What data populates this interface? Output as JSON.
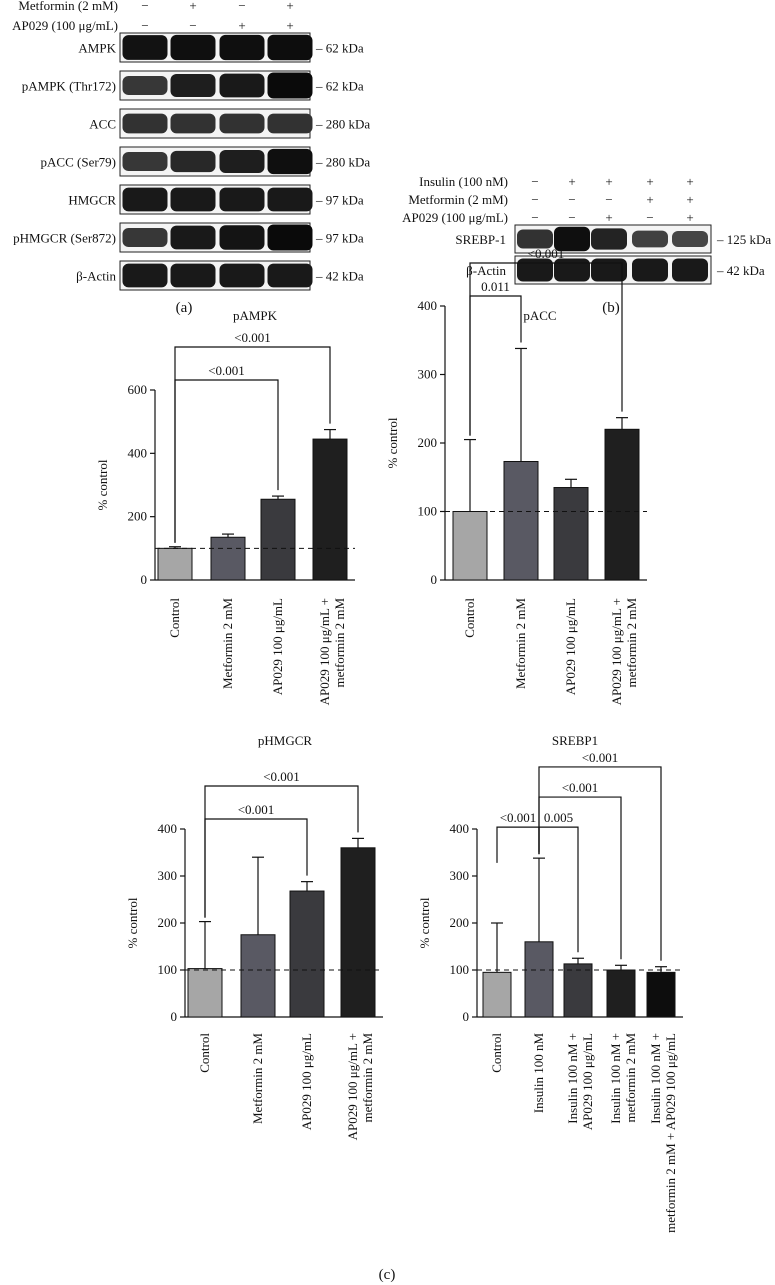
{
  "panel_a": {
    "treatments": [
      {
        "label": "Metformin (2 mM)",
        "signs": [
          "−",
          "+",
          "−",
          "+"
        ]
      },
      {
        "label": "AP029 (100 μg/mL)",
        "signs": [
          "−",
          "−",
          "+",
          "+"
        ]
      }
    ],
    "blots": [
      {
        "label": "AMPK",
        "size": "– 62 kDa",
        "intensity": [
          0.92,
          0.95,
          0.95,
          0.97
        ]
      },
      {
        "label": "pAMPK (Thr172)",
        "size": "– 62 kDa",
        "intensity": [
          0.55,
          0.8,
          0.85,
          1.0
        ]
      },
      {
        "label": "ACC",
        "size": "– 280 kDa",
        "intensity": [
          0.6,
          0.6,
          0.6,
          0.6
        ]
      },
      {
        "label": "pACC (Ser79)",
        "size": "– 280 kDa",
        "intensity": [
          0.55,
          0.7,
          0.8,
          0.95
        ]
      },
      {
        "label": "HMGCR",
        "size": "– 97 kDa",
        "intensity": [
          0.85,
          0.85,
          0.85,
          0.85
        ]
      },
      {
        "label": "pHMGCR (Ser872)",
        "size": "– 97 kDa",
        "intensity": [
          0.55,
          0.85,
          0.9,
          1.0
        ]
      },
      {
        "label": "β-Actin",
        "size": "– 42 kDa",
        "intensity": [
          0.85,
          0.85,
          0.85,
          0.85
        ]
      }
    ],
    "caption": "(a)"
  },
  "panel_b": {
    "treatments": [
      {
        "label": "Insulin (100 nM)",
        "signs": [
          "−",
          "+",
          "+",
          "+",
          "+"
        ]
      },
      {
        "label": "Metformin (2 mM)",
        "signs": [
          "−",
          "−",
          "−",
          "+",
          "+"
        ]
      },
      {
        "label": "AP029 (100 μg/mL)",
        "signs": [
          "−",
          "−",
          "+",
          "−",
          "+"
        ]
      }
    ],
    "blots": [
      {
        "label": "SREBP-1",
        "size": "– 125 kDa",
        "intensity": [
          0.6,
          0.95,
          0.75,
          0.45,
          0.4
        ]
      },
      {
        "label": "β-Actin",
        "size": "– 42 kDa",
        "intensity": [
          0.85,
          0.85,
          0.85,
          0.85,
          0.85
        ]
      }
    ],
    "caption": "(b)"
  },
  "panel_c_caption": "(c)",
  "chart_data": [
    {
      "type": "bar",
      "title": "pAMPK",
      "ylabel": "% control",
      "ylim": [
        0,
        600
      ],
      "yticks": [
        0,
        200,
        400,
        600
      ],
      "categories": [
        "Control",
        "Metformin 2 mM",
        "AP029 100 μg/mL",
        "AP029 100 μg/mL + metformin 2 mM"
      ],
      "values": [
        100,
        135,
        255,
        445
      ],
      "errors": [
        5,
        10,
        10,
        30
      ],
      "colors": [
        "#a6a6a6",
        "#595963",
        "#3a3a3e",
        "#1f1f1f"
      ],
      "reference_line": 100,
      "brackets": [
        {
          "from": 0,
          "to": 2,
          "label": "<0.001"
        },
        {
          "from": 0,
          "to": 3,
          "label": "<0.001"
        }
      ]
    },
    {
      "type": "bar",
      "title": "pACC",
      "ylabel": "% control",
      "ylim": [
        0,
        400
      ],
      "yticks": [
        0,
        100,
        200,
        300,
        400
      ],
      "categories": [
        "Control",
        "Metformin 2 mM",
        "AP029 100 μg/mL",
        "AP029 100 μg/mL + metformin 2 mM"
      ],
      "values": [
        100,
        173,
        135,
        220
      ],
      "errors": [
        105,
        165,
        12,
        17
      ],
      "colors": [
        "#a6a6a6",
        "#595963",
        "#3a3a3e",
        "#1f1f1f"
      ],
      "reference_line": 100,
      "brackets": [
        {
          "from": 0,
          "to": 1,
          "label": "0.011"
        },
        {
          "from": 0,
          "to": 3,
          "label": "<0.001"
        }
      ]
    },
    {
      "type": "bar",
      "title": "pHMGCR",
      "ylabel": "% control",
      "ylim": [
        0,
        400
      ],
      "yticks": [
        0,
        100,
        200,
        300,
        400
      ],
      "categories": [
        "Control",
        "Metformin 2 mM",
        "AP029 100 μg/mL",
        "AP029 100 μg/mL + metformin 2 mM"
      ],
      "values": [
        103,
        175,
        268,
        360
      ],
      "errors": [
        100,
        165,
        20,
        20
      ],
      "colors": [
        "#a6a6a6",
        "#595963",
        "#3a3a3e",
        "#1f1f1f"
      ],
      "reference_line": 100,
      "brackets": [
        {
          "from": 0,
          "to": 2,
          "label": "<0.001"
        },
        {
          "from": 0,
          "to": 3,
          "label": "<0.001"
        }
      ]
    },
    {
      "type": "bar",
      "title": "SREBP1",
      "ylabel": "% control",
      "ylim": [
        0,
        400
      ],
      "yticks": [
        0,
        100,
        200,
        300,
        400
      ],
      "categories": [
        "Control",
        "Insulin 100 nM",
        "Insulin 100 nM + AP029 100 μg/mL",
        "Insulin 100 nM + metformin 2 mM",
        "Insulin 100 nM + metformin 2 mM + AP029 100 μg/mL"
      ],
      "values": [
        95,
        160,
        113,
        100,
        95
      ],
      "errors": [
        105,
        178,
        12,
        10,
        12
      ],
      "colors": [
        "#a6a6a6",
        "#595963",
        "#3a3a3e",
        "#1f1f1f",
        "#0d0d0d"
      ],
      "reference_line": 100,
      "brackets": [
        {
          "from": 0,
          "to": 1,
          "label": "<0.001"
        },
        {
          "from": 1,
          "to": 2,
          "label": "0.005"
        },
        {
          "from": 1,
          "to": 3,
          "label": "<0.001"
        },
        {
          "from": 1,
          "to": 4,
          "label": "<0.001"
        }
      ]
    }
  ]
}
